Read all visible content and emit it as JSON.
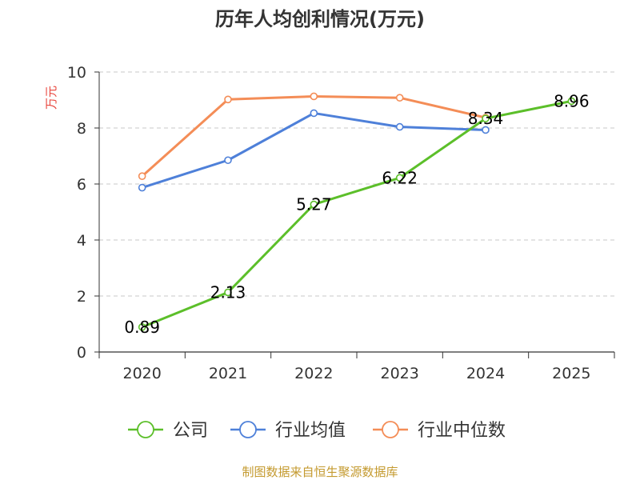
{
  "chart_data": {
    "type": "line",
    "title": "历年人均创利情况(万元)",
    "ylabel": "万元",
    "xlabel": "",
    "categories": [
      "2020",
      "2021",
      "2022",
      "2023",
      "2024",
      "2025"
    ],
    "ylim": [
      0,
      10
    ],
    "yticks": [
      0,
      2,
      4,
      6,
      8,
      10
    ],
    "grid": "horizontal dashed",
    "legend_position": "bottom",
    "series": [
      {
        "name": "公司",
        "color": "#5cbf2a",
        "values": [
          0.89,
          2.13,
          5.27,
          6.22,
          8.34,
          8.96
        ],
        "labels": [
          "0.89",
          "2.13",
          "5.27",
          "6.22",
          "8.34",
          "8.96"
        ]
      },
      {
        "name": "行业均值",
        "color": "#4e80d9",
        "values": [
          5.87,
          6.85,
          8.53,
          8.04,
          7.93,
          null
        ]
      },
      {
        "name": "行业中位数",
        "color": "#f48d57",
        "values": [
          6.28,
          9.02,
          9.13,
          9.08,
          8.37,
          null
        ]
      }
    ]
  },
  "footer": {
    "credit": "制图数据来自恒生聚源数据库"
  }
}
